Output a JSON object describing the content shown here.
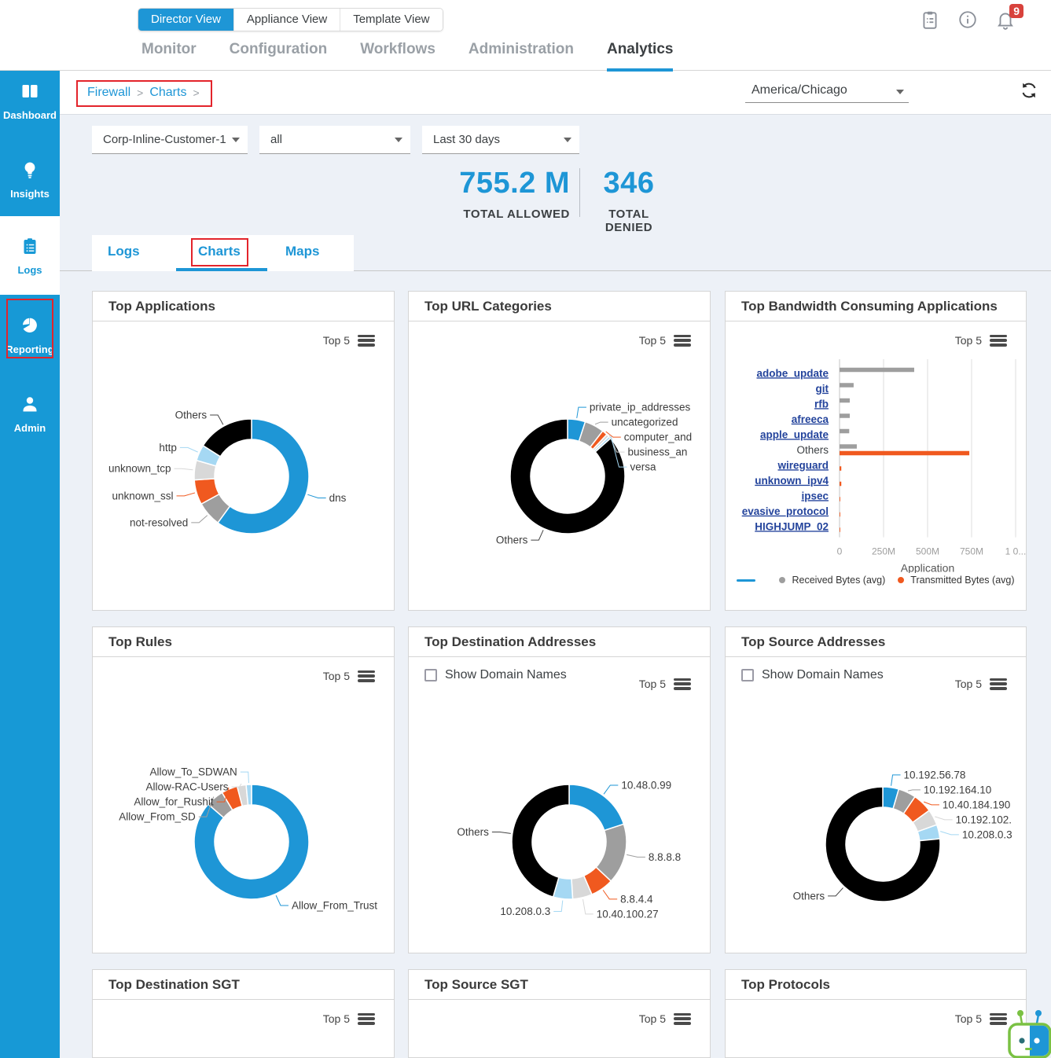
{
  "header": {
    "view_tabs": [
      {
        "label": "Director View",
        "active": true
      },
      {
        "label": "Appliance View",
        "active": false
      },
      {
        "label": "Template View",
        "active": false
      }
    ],
    "nav": [
      {
        "label": "Monitor"
      },
      {
        "label": "Configuration"
      },
      {
        "label": "Workflows"
      },
      {
        "label": "Administration"
      },
      {
        "label": "Analytics",
        "active": true
      }
    ],
    "notification_count": "9"
  },
  "sidebar": {
    "items": [
      {
        "label": "Dashboard"
      },
      {
        "label": "Insights"
      },
      {
        "label": "Logs",
        "active": true
      },
      {
        "label": "Reporting"
      },
      {
        "label": "Admin"
      }
    ]
  },
  "toolbar": {
    "breadcrumb": {
      "part1": "Firewall",
      "sep1": ">",
      "part2": "Charts",
      "sep2": ">"
    },
    "timezone": "America/Chicago"
  },
  "filters": {
    "appliance": "Corp-Inline-Customer-1",
    "rule": "all",
    "time_range": "Last 30 days"
  },
  "stats": {
    "allowed_value": "755.2 M",
    "allowed_label": "TOTAL ALLOWED",
    "denied_value": "346",
    "denied_label": "TOTAL DENIED"
  },
  "tabs": [
    {
      "label": "Logs"
    },
    {
      "label": "Charts",
      "active": true
    },
    {
      "label": "Maps"
    }
  ],
  "chart_data": [
    {
      "id": "top_applications",
      "type": "pie",
      "title": "Top Applications",
      "top_label": "Top 5",
      "slices": [
        {
          "label": "dns",
          "value": 60,
          "color": "#1e96d6"
        },
        {
          "label": "not-resolved",
          "value": 7,
          "color": "#9e9e9e"
        },
        {
          "label": "unknown_ssl",
          "value": 7,
          "color": "#f0591f"
        },
        {
          "label": "unknown_tcp",
          "value": 5.5,
          "color": "#d8d8d8"
        },
        {
          "label": "http",
          "value": 4.5,
          "color": "#a5d8f3"
        },
        {
          "label": "Others",
          "value": 16,
          "color": "#000000"
        }
      ]
    },
    {
      "id": "top_url_categories",
      "type": "pie",
      "title": "Top URL Categories",
      "top_label": "Top 5",
      "slices": [
        {
          "label": "private_ip_addresses",
          "value": 5,
          "color": "#1e96d6"
        },
        {
          "label": "uncategorized",
          "value": 5.5,
          "color": "#9e9e9e"
        },
        {
          "label": "computer_and",
          "value": 1.5,
          "color": "#f0591f"
        },
        {
          "label": "business_an",
          "value": 0.8,
          "color": "#d8d8d8"
        },
        {
          "label": "versa",
          "value": 0.7,
          "color": "#a5d8f3"
        },
        {
          "label": "Others",
          "value": 86.5,
          "color": "#000000"
        }
      ]
    },
    {
      "id": "top_bandwidth",
      "type": "bar",
      "title": "Top Bandwidth Consuming Applications",
      "top_label": "Top 5",
      "categories": [
        {
          "label": "adobe_update",
          "link": true
        },
        {
          "label": "git",
          "link": true
        },
        {
          "label": "rfb",
          "link": true
        },
        {
          "label": "afreeca",
          "link": true
        },
        {
          "label": "apple_update",
          "link": true
        },
        {
          "label": "Others",
          "link": false
        },
        {
          "label": "wireguard",
          "link": true
        },
        {
          "label": "unknown_ipv4",
          "link": true
        },
        {
          "label": "ipsec",
          "link": true
        },
        {
          "label": "evasive_protocol",
          "link": true
        },
        {
          "label": "HIGHJUMP_02",
          "link": true
        }
      ],
      "series": [
        {
          "name": "Received Bytes (avg)",
          "color": "#9e9e9e",
          "values": [
            424,
            80,
            58,
            58,
            55,
            98,
            0,
            0,
            0,
            0,
            0
          ]
        },
        {
          "name": "Transmitted Bytes (avg)",
          "color": "#f0591f",
          "values": [
            0,
            0,
            0,
            0,
            0,
            737,
            10,
            10,
            4,
            4,
            4
          ]
        }
      ],
      "unit": "M",
      "xlim": [
        0,
        1000
      ],
      "xticks": [
        {
          "v": 0,
          "label": "0"
        },
        {
          "v": 250,
          "label": "250M"
        },
        {
          "v": 500,
          "label": "500M"
        },
        {
          "v": 750,
          "label": "750M"
        },
        {
          "v": 1000,
          "label": "1 0..."
        }
      ],
      "axis_title": "Application",
      "legend_line_color": "#1e96d6"
    },
    {
      "id": "top_rules",
      "type": "pie",
      "title": "Top Rules",
      "top_label": "Top 5",
      "slices": [
        {
          "label": "Allow_From_Trust",
          "value": 85.5,
          "color": "#1e96d6"
        },
        {
          "label": "Allow_From_SD",
          "value": 5,
          "color": "#9e9e9e"
        },
        {
          "label": "Allow_for_Rushit",
          "value": 4.5,
          "color": "#f0591f"
        },
        {
          "label": "Allow-RAC-Users",
          "value": 2.5,
          "color": "#d8d8d8"
        },
        {
          "label": "Allow_To_SDWAN",
          "value": 1.5,
          "color": "#a5d8f3"
        }
      ]
    },
    {
      "id": "top_destination_addresses",
      "type": "pie",
      "title": "Top Destination Addresses",
      "top_label": "Top 5",
      "checkbox_label": "Show Domain Names",
      "checkbox_checked": false,
      "slices": [
        {
          "label": "10.48.0.99",
          "value": 20,
          "color": "#1e96d6"
        },
        {
          "label": "8.8.8.8",
          "value": 17,
          "color": "#9e9e9e"
        },
        {
          "label": "8.8.4.4",
          "value": 6.5,
          "color": "#f0591f"
        },
        {
          "label": "10.40.100.27",
          "value": 5.5,
          "color": "#d8d8d8"
        },
        {
          "label": "10.208.0.3",
          "value": 5.5,
          "color": "#a5d8f3"
        },
        {
          "label": "Others",
          "value": 45.5,
          "color": "#000000"
        }
      ]
    },
    {
      "id": "top_source_addresses",
      "type": "pie",
      "title": "Top Source Addresses",
      "top_label": "Top 5",
      "checkbox_label": "Show Domain Names",
      "checkbox_checked": false,
      "slices": [
        {
          "label": "10.192.56.78",
          "value": 4.5,
          "color": "#1e96d6"
        },
        {
          "label": "10.192.164.10",
          "value": 5,
          "color": "#9e9e9e"
        },
        {
          "label": "10.40.184.190",
          "value": 5.5,
          "color": "#f0591f"
        },
        {
          "label": "10.192.102.",
          "value": 4.5,
          "color": "#d8d8d8"
        },
        {
          "label": "10.208.0.3",
          "value": 4,
          "color": "#a5d8f3"
        },
        {
          "label": "Others",
          "value": 76.5,
          "color": "#000000"
        }
      ]
    }
  ],
  "bottom_cards": [
    {
      "title": "Top Destination SGT",
      "top_label": "Top 5"
    },
    {
      "title": "Top Source SGT",
      "top_label": "Top 5"
    },
    {
      "title": "Top Protocols",
      "top_label": "Top 5"
    }
  ]
}
